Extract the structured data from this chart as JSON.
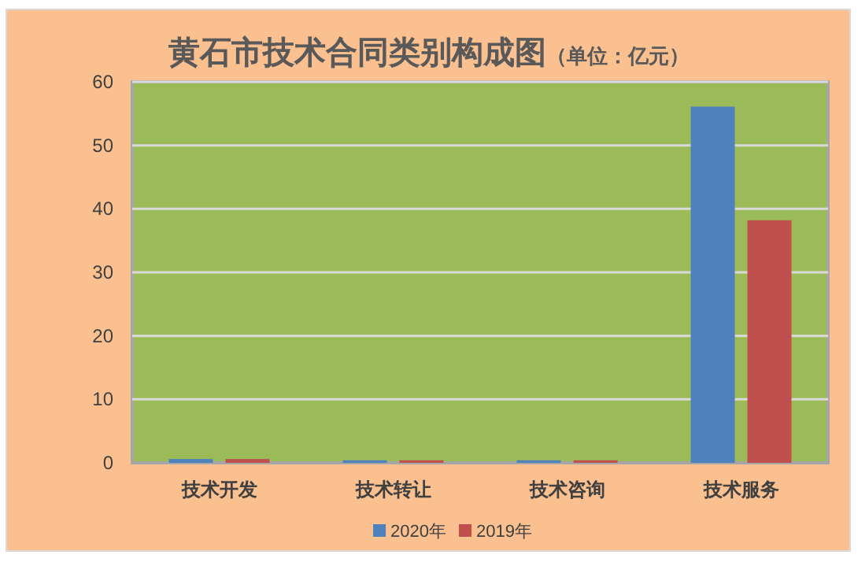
{
  "chart_data": {
    "type": "bar",
    "title": "黄石市技术合同类别构成图",
    "subtitle": "（单位：亿元）",
    "categories": [
      "技术开发",
      "技术转让",
      "技术咨询",
      "技术服务"
    ],
    "series": [
      {
        "name": "2020年",
        "color": "#4f81bd",
        "values": [
          0.6,
          0.4,
          0.4,
          56.1
        ]
      },
      {
        "name": "2019年",
        "color": "#c0504d",
        "values": [
          0.6,
          0.4,
          0.4,
          38.2
        ]
      }
    ],
    "ylim": [
      0,
      60
    ],
    "yticks": [
      0,
      10,
      20,
      30,
      40,
      50,
      60
    ],
    "grid": "y",
    "legend": "bottom"
  }
}
